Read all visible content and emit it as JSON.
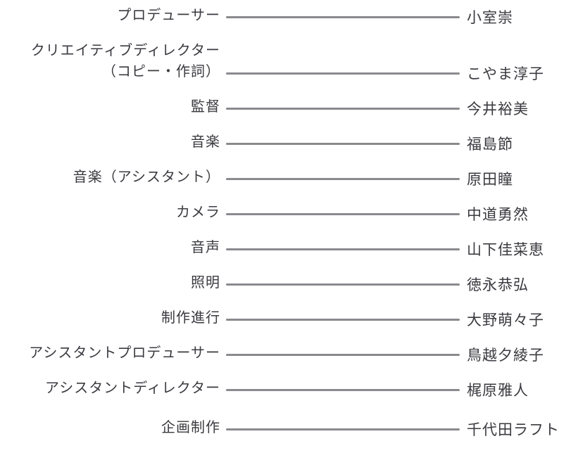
{
  "page": {
    "background": "#ffffff",
    "text_color": "#3a3a40",
    "line_color": "#8a8a8e"
  },
  "credits": {
    "rows": [
      {
        "role": "プロデューサー",
        "name": "小室崇"
      },
      {
        "role": "クリエイティブディレクター",
        "role_line2": "（コピー・作詞）",
        "name": "こやま淳子"
      },
      {
        "role": "監督",
        "name": "今井裕美"
      },
      {
        "role": "音楽",
        "name": "福島節"
      },
      {
        "role": "音楽（アシスタント）",
        "name": "原田瞳"
      },
      {
        "role": "カメラ",
        "name": "中道勇然"
      },
      {
        "role": "音声",
        "name": "山下佳菜恵"
      },
      {
        "role": "照明",
        "name": "徳永恭弘"
      },
      {
        "role": "制作進行",
        "name": "大野萌々子"
      },
      {
        "role": "アシスタントプロデューサー",
        "name": "鳥越夕綾子"
      },
      {
        "role": "アシスタントディレクター",
        "name": "梶原雅人"
      },
      {
        "role": "企画制作",
        "name": "千代田ラフト",
        "extra_gap": true
      }
    ]
  }
}
